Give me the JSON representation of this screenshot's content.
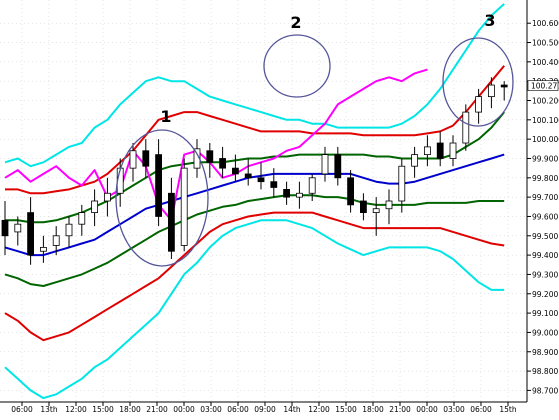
{
  "chart_data": {
    "type": "candlestick",
    "title": "",
    "ylim": [
      98.64,
      100.72
    ],
    "y_ticks": [
      "100.600",
      "100.500",
      "100.400",
      "100.300",
      "100.200",
      "100.100",
      "100.000",
      "99.900",
      "99.800",
      "99.700",
      "99.600",
      "99.500",
      "99.400",
      "99.300",
      "99.200",
      "99.100",
      "99.000",
      "98.900",
      "98.800",
      "98.700"
    ],
    "x_tick_labels": [
      "06:00",
      "13th",
      "12:00",
      "15:00",
      "18:00",
      "21:00",
      "00:00",
      "03:00",
      "06:00",
      "09:00",
      "14th",
      "12:00",
      "15:00",
      "18:00",
      "21:00",
      "00:00",
      "03:00",
      "06:00",
      "15th"
    ],
    "current_price_label": "100.277",
    "annotations": [
      "1",
      "2",
      "3"
    ],
    "candles": [
      {
        "o": 99.58,
        "h": 99.68,
        "l": 99.4,
        "c": 99.5
      },
      {
        "o": 99.52,
        "h": 99.6,
        "l": 99.45,
        "c": 99.56
      },
      {
        "o": 99.62,
        "h": 99.7,
        "l": 99.35,
        "c": 99.4
      },
      {
        "o": 99.42,
        "h": 99.5,
        "l": 99.36,
        "c": 99.44
      },
      {
        "o": 99.45,
        "h": 99.55,
        "l": 99.4,
        "c": 99.5
      },
      {
        "o": 99.5,
        "h": 99.6,
        "l": 99.44,
        "c": 99.56
      },
      {
        "o": 99.56,
        "h": 99.66,
        "l": 99.5,
        "c": 99.62
      },
      {
        "o": 99.62,
        "h": 99.74,
        "l": 99.55,
        "c": 99.68
      },
      {
        "o": 99.68,
        "h": 99.8,
        "l": 99.6,
        "c": 99.72
      },
      {
        "o": 99.72,
        "h": 99.9,
        "l": 99.65,
        "c": 99.85
      },
      {
        "o": 99.85,
        "h": 99.98,
        "l": 99.78,
        "c": 99.94
      },
      {
        "o": 99.94,
        "h": 100.0,
        "l": 99.8,
        "c": 99.86
      },
      {
        "o": 99.92,
        "h": 100.0,
        "l": 99.55,
        "c": 99.6
      },
      {
        "o": 99.72,
        "h": 99.8,
        "l": 99.38,
        "c": 99.42
      },
      {
        "o": 99.45,
        "h": 99.9,
        "l": 99.42,
        "c": 99.85
      },
      {
        "o": 99.85,
        "h": 100.0,
        "l": 99.8,
        "c": 99.95
      },
      {
        "o": 99.94,
        "h": 99.98,
        "l": 99.8,
        "c": 99.88
      },
      {
        "o": 99.9,
        "h": 99.96,
        "l": 99.8,
        "c": 99.85
      },
      {
        "o": 99.85,
        "h": 99.92,
        "l": 99.78,
        "c": 99.82
      },
      {
        "o": 99.82,
        "h": 99.9,
        "l": 99.76,
        "c": 99.8
      },
      {
        "o": 99.8,
        "h": 99.88,
        "l": 99.74,
        "c": 99.78
      },
      {
        "o": 99.78,
        "h": 99.85,
        "l": 99.7,
        "c": 99.75
      },
      {
        "o": 99.74,
        "h": 99.78,
        "l": 99.66,
        "c": 99.7
      },
      {
        "o": 99.7,
        "h": 99.78,
        "l": 99.64,
        "c": 99.72
      },
      {
        "o": 99.72,
        "h": 99.82,
        "l": 99.68,
        "c": 99.8
      },
      {
        "o": 99.82,
        "h": 99.96,
        "l": 99.78,
        "c": 99.92
      },
      {
        "o": 99.92,
        "h": 99.96,
        "l": 99.76,
        "c": 99.8
      },
      {
        "o": 99.8,
        "h": 99.84,
        "l": 99.62,
        "c": 99.66
      },
      {
        "o": 99.68,
        "h": 99.72,
        "l": 99.58,
        "c": 99.62
      },
      {
        "o": 99.62,
        "h": 99.7,
        "l": 99.5,
        "c": 99.64
      },
      {
        "o": 99.64,
        "h": 99.74,
        "l": 99.56,
        "c": 99.68
      },
      {
        "o": 99.68,
        "h": 99.9,
        "l": 99.62,
        "c": 99.86
      },
      {
        "o": 99.86,
        "h": 99.96,
        "l": 99.8,
        "c": 99.92
      },
      {
        "o": 99.92,
        "h": 100.02,
        "l": 99.86,
        "c": 99.96
      },
      {
        "o": 99.98,
        "h": 100.04,
        "l": 99.86,
        "c": 99.9
      },
      {
        "o": 99.9,
        "h": 100.02,
        "l": 99.86,
        "c": 99.98
      },
      {
        "o": 99.98,
        "h": 100.18,
        "l": 99.94,
        "c": 100.14
      },
      {
        "o": 100.14,
        "h": 100.26,
        "l": 100.08,
        "c": 100.22
      },
      {
        "o": 100.22,
        "h": 100.32,
        "l": 100.16,
        "c": 100.28
      },
      {
        "o": 100.28,
        "h": 100.3,
        "l": 100.2,
        "c": 100.27
      }
    ],
    "series": [
      {
        "color": "#00e5e5",
        "values": [
          99.88,
          99.9,
          99.86,
          99.88,
          99.92,
          99.96,
          99.98,
          100.06,
          100.1,
          100.18,
          100.24,
          100.3,
          100.32,
          100.3,
          100.3,
          100.26,
          100.22,
          100.2,
          100.18,
          100.16,
          100.14,
          100.12,
          100.1,
          100.1,
          100.08,
          100.08,
          100.06,
          100.06,
          100.06,
          100.06,
          100.06,
          100.08,
          100.12,
          100.18,
          100.26,
          100.36,
          100.46,
          100.56,
          100.64,
          100.7
        ]
      },
      {
        "color": "#e00000",
        "values": [
          99.74,
          99.74,
          99.72,
          99.72,
          99.73,
          99.74,
          99.76,
          99.78,
          99.82,
          99.88,
          99.94,
          100.02,
          100.1,
          100.12,
          100.14,
          100.14,
          100.12,
          100.1,
          100.08,
          100.06,
          100.04,
          100.04,
          100.04,
          100.04,
          100.03,
          100.03,
          100.03,
          100.03,
          100.02,
          100.02,
          100.02,
          100.02,
          100.02,
          100.03,
          100.04,
          100.07,
          100.14,
          100.22,
          100.3,
          100.38
        ]
      },
      {
        "color": "#006400",
        "values": [
          99.58,
          99.58,
          99.57,
          99.57,
          99.58,
          99.6,
          99.62,
          99.65,
          99.68,
          99.72,
          99.76,
          99.8,
          99.84,
          99.86,
          99.87,
          99.88,
          99.88,
          99.88,
          99.89,
          99.9,
          99.9,
          99.91,
          99.91,
          99.92,
          99.92,
          99.92,
          99.92,
          99.92,
          99.92,
          99.91,
          99.91,
          99.9,
          99.9,
          99.9,
          99.9,
          99.92,
          99.96,
          100.0,
          100.06,
          100.14
        ]
      },
      {
        "color": "#0000cc",
        "values": [
          99.44,
          99.42,
          99.4,
          99.4,
          99.42,
          99.44,
          99.46,
          99.48,
          99.52,
          99.56,
          99.6,
          99.64,
          99.66,
          99.68,
          99.7,
          99.72,
          99.74,
          99.76,
          99.78,
          99.8,
          99.81,
          99.82,
          99.82,
          99.82,
          99.82,
          99.82,
          99.82,
          99.82,
          99.8,
          99.78,
          99.77,
          99.77,
          99.78,
          99.8,
          99.82,
          99.84,
          99.86,
          99.88,
          99.9,
          99.92
        ]
      },
      {
        "color": "#006400",
        "values": [
          99.3,
          99.28,
          99.25,
          99.24,
          99.26,
          99.28,
          99.3,
          99.33,
          99.36,
          99.4,
          99.44,
          99.48,
          99.52,
          99.55,
          99.58,
          99.61,
          99.63,
          99.65,
          99.66,
          99.68,
          99.69,
          99.7,
          99.71,
          99.71,
          99.71,
          99.7,
          99.7,
          99.69,
          99.67,
          99.66,
          99.66,
          99.66,
          99.66,
          99.67,
          99.67,
          99.67,
          99.67,
          99.68,
          99.68,
          99.68
        ]
      },
      {
        "color": "#e00000",
        "values": [
          99.1,
          99.06,
          99.0,
          98.96,
          98.98,
          99.0,
          99.04,
          99.08,
          99.12,
          99.16,
          99.2,
          99.24,
          99.28,
          99.34,
          99.4,
          99.46,
          99.52,
          99.56,
          99.58,
          99.6,
          99.61,
          99.62,
          99.62,
          99.62,
          99.62,
          99.6,
          99.58,
          99.56,
          99.54,
          99.54,
          99.54,
          99.54,
          99.54,
          99.54,
          99.54,
          99.52,
          99.5,
          99.48,
          99.46,
          99.45
        ]
      },
      {
        "color": "#00e5e5",
        "values": [
          98.82,
          98.76,
          98.7,
          98.66,
          98.68,
          98.72,
          98.76,
          98.82,
          98.86,
          98.92,
          98.98,
          99.04,
          99.1,
          99.2,
          99.3,
          99.36,
          99.44,
          99.5,
          99.54,
          99.56,
          99.58,
          99.58,
          99.58,
          99.56,
          99.54,
          99.5,
          99.46,
          99.43,
          99.4,
          99.42,
          99.44,
          99.44,
          99.44,
          99.44,
          99.42,
          99.38,
          99.32,
          99.26,
          99.22,
          99.22
        ]
      },
      {
        "color": "#ff00ff",
        "values": [
          99.8,
          99.84,
          99.78,
          99.82,
          99.86,
          99.8,
          99.76,
          99.84,
          99.7,
          99.74,
          99.94,
          99.86,
          99.66,
          99.58,
          99.92,
          99.94,
          99.88,
          99.8,
          99.82,
          99.86,
          99.88,
          99.9,
          99.94,
          99.96,
          100.02,
          100.08,
          100.18,
          100.22,
          100.26,
          100.3,
          100.32,
          100.3,
          100.34,
          100.36
        ]
      }
    ],
    "circles": [
      {
        "label": "1"
      },
      {
        "label": "2"
      },
      {
        "label": "3"
      }
    ]
  }
}
